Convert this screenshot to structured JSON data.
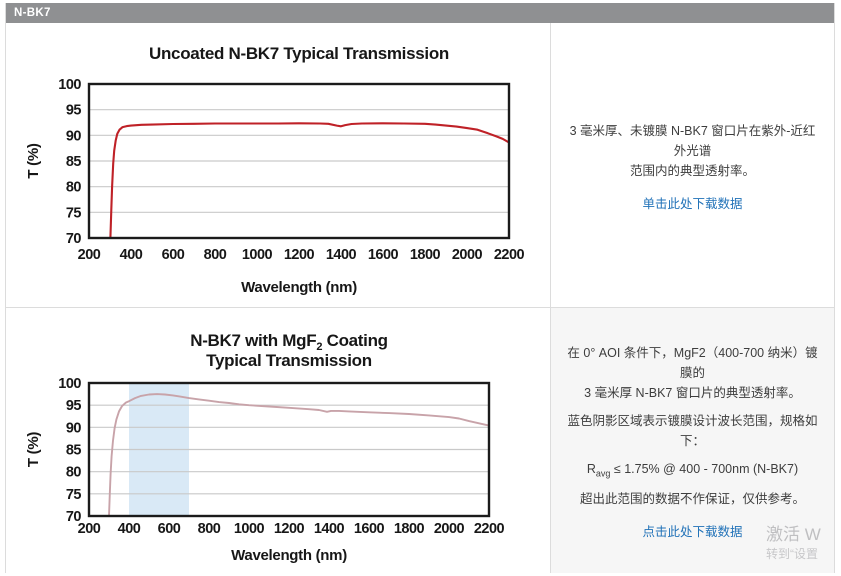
{
  "header": {
    "title": "N-BK7"
  },
  "row1": {
    "lines": [
      "3 毫米厚、未镀膜 N-BK7 窗口片在紫外-近红外光谱",
      "范围内的典型透射率。"
    ],
    "link": "单击此处下载数据"
  },
  "row2": {
    "lines": [
      "在 0° AOI 条件下，MgF2（400-700 纳米）镀膜的",
      "3 毫米厚 N-BK7 窗口片的典型透射率。",
      "蓝色阴影区域表示镀膜设计波长范围，规格如下：",
      "超出此范围的数据不作保证，仅供参考。"
    ],
    "spec_pre": "R",
    "spec_sub": "avg",
    "spec_post": " ≤ 1.75% @ 400 - 700nm (N-BK7)",
    "link": "点击此处下载数据"
  },
  "watermark": {
    "line1": "激活 W",
    "line2": "转到“设置"
  },
  "colors": {
    "header_bg": "#8f9092",
    "border": "#dcdcdc",
    "link_blue": "#2172b8",
    "uncoated_line": "#bf2127",
    "coated_line": "#c8a3a9",
    "band_blue": "#d9e9f6",
    "grid": "#c9c9c9"
  },
  "chart_data": [
    {
      "type": "line",
      "title": "Uncoated N-BK7 Typical Transmission",
      "xlabel": "Wavelength (nm)",
      "ylabel": "T (%)",
      "xlim": [
        200,
        2200
      ],
      "ylim": [
        70,
        100
      ],
      "xticks": [
        200,
        400,
        600,
        800,
        1000,
        1200,
        1400,
        1600,
        1800,
        2000,
        2200
      ],
      "yticks": [
        70,
        75,
        80,
        85,
        90,
        95,
        100
      ],
      "grid": "horizontal",
      "grid_color": "#c9c9c9",
      "line_color": "#bf2127",
      "line_width": 2.1,
      "series": [
        {
          "name": "Uncoated N-BK7 (3 mm)",
          "points": [
            [
              302,
              70
            ],
            [
              306,
              75.5
            ],
            [
              310,
              80
            ],
            [
              315,
              84.5
            ],
            [
              320,
              87
            ],
            [
              327,
              89
            ],
            [
              335,
              90.3
            ],
            [
              345,
              91.1
            ],
            [
              360,
              91.6
            ],
            [
              380,
              91.8
            ],
            [
              400,
              91.9
            ],
            [
              450,
              92.05
            ],
            [
              500,
              92.1
            ],
            [
              600,
              92.2
            ],
            [
              700,
              92.25
            ],
            [
              800,
              92.3
            ],
            [
              900,
              92.3
            ],
            [
              1000,
              92.3
            ],
            [
              1100,
              92.3
            ],
            [
              1200,
              92.35
            ],
            [
              1300,
              92.3
            ],
            [
              1340,
              92.25
            ],
            [
              1380,
              91.9
            ],
            [
              1400,
              91.75
            ],
            [
              1420,
              92.0
            ],
            [
              1450,
              92.2
            ],
            [
              1500,
              92.3
            ],
            [
              1600,
              92.35
            ],
            [
              1700,
              92.3
            ],
            [
              1800,
              92.25
            ],
            [
              1850,
              92.1
            ],
            [
              1900,
              91.9
            ],
            [
              1950,
              91.7
            ],
            [
              2000,
              91.4
            ],
            [
              2050,
              91.1
            ],
            [
              2100,
              90.4
            ],
            [
              2140,
              89.8
            ],
            [
              2170,
              89.3
            ],
            [
              2200,
              88.6
            ]
          ]
        }
      ]
    },
    {
      "type": "line",
      "title_parts": {
        "pre": "N-BK7 with MgF",
        "sub": "2",
        "post": " Coating"
      },
      "title_line2": "Typical Transmission",
      "xlabel": "Wavelength (nm)",
      "ylabel": "T (%)",
      "xlim": [
        200,
        2200
      ],
      "ylim": [
        70,
        100
      ],
      "xticks": [
        200,
        400,
        600,
        800,
        1000,
        1200,
        1400,
        1600,
        1800,
        2000,
        2200
      ],
      "yticks": [
        70,
        75,
        80,
        85,
        90,
        95,
        100
      ],
      "grid": "horizontal",
      "grid_color": "#c9c9c9",
      "line_color": "#c8a3a9",
      "line_width": 1.9,
      "band": {
        "from": 400,
        "to": 700,
        "color": "#d9e9f6",
        "meaning": "coating design wavelength range"
      },
      "series": [
        {
          "name": "N-BK7 with MgF2 coating (3 mm)",
          "points": [
            [
              300,
              70
            ],
            [
              304,
              75
            ],
            [
              308,
              79.5
            ],
            [
              313,
              83.5
            ],
            [
              320,
              87
            ],
            [
              328,
              89.8
            ],
            [
              337,
              91.8
            ],
            [
              350,
              93.6
            ],
            [
              365,
              94.8
            ],
            [
              385,
              95.6
            ],
            [
              400,
              95.9
            ],
            [
              430,
              96.6
            ],
            [
              460,
              97.1
            ],
            [
              500,
              97.4
            ],
            [
              540,
              97.5
            ],
            [
              580,
              97.4
            ],
            [
              620,
              97.2
            ],
            [
              660,
              96.9
            ],
            [
              700,
              96.6
            ],
            [
              750,
              96.3
            ],
            [
              800,
              96.0
            ],
            [
              850,
              95.7
            ],
            [
              900,
              95.5
            ],
            [
              950,
              95.2
            ],
            [
              1000,
              95.0
            ],
            [
              1100,
              94.7
            ],
            [
              1200,
              94.4
            ],
            [
              1300,
              94.1
            ],
            [
              1350,
              93.9
            ],
            [
              1390,
              93.5
            ],
            [
              1410,
              93.7
            ],
            [
              1450,
              93.7
            ],
            [
              1500,
              93.6
            ],
            [
              1600,
              93.4
            ],
            [
              1700,
              93.2
            ],
            [
              1800,
              93.0
            ],
            [
              1900,
              92.7
            ],
            [
              2000,
              92.3
            ],
            [
              2050,
              92.0
            ],
            [
              2100,
              91.4
            ],
            [
              2150,
              90.9
            ],
            [
              2200,
              90.4
            ]
          ]
        }
      ]
    }
  ]
}
